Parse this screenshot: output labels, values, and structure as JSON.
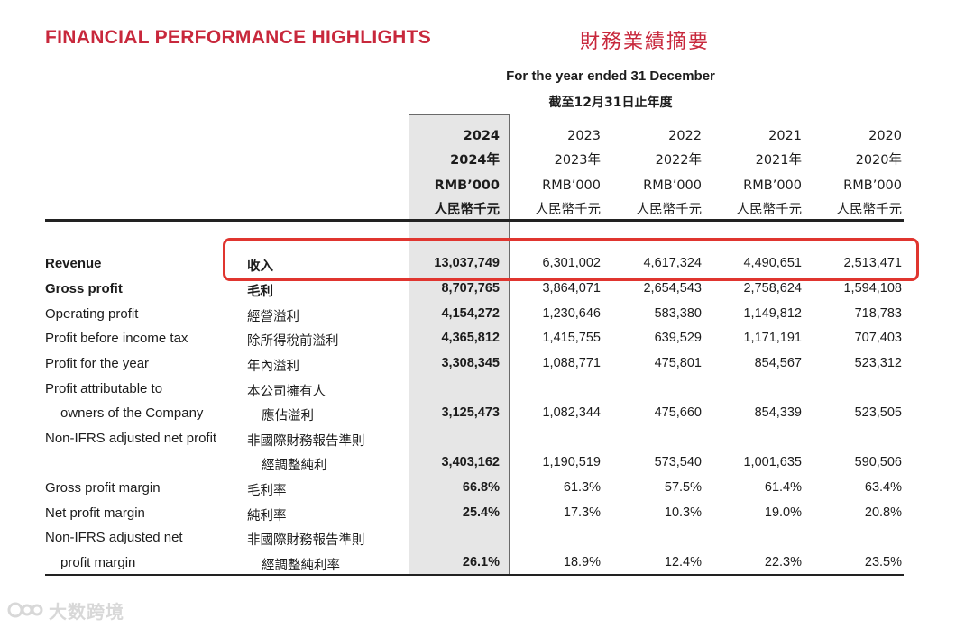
{
  "title": {
    "english": "FINANCIAL PERFORMANCE HIGHLIGHTS",
    "chinese": "財務業績摘要"
  },
  "period": {
    "english": "For the year ended 31 December",
    "chinese": "截至12月31日止年度"
  },
  "columns": [
    {
      "year": "2024",
      "year_zh": "2024年",
      "unit": "RMB’000",
      "unit_zh": "人民幣千元"
    },
    {
      "year": "2023",
      "year_zh": "2023年",
      "unit": "RMB’000",
      "unit_zh": "人民幣千元"
    },
    {
      "year": "2022",
      "year_zh": "2022年",
      "unit": "RMB’000",
      "unit_zh": "人民幣千元"
    },
    {
      "year": "2021",
      "year_zh": "2021年",
      "unit": "RMB’000",
      "unit_zh": "人民幣千元"
    },
    {
      "year": "2020",
      "year_zh": "2020年",
      "unit": "RMB’000",
      "unit_zh": "人民幣千元"
    }
  ],
  "rows": [
    {
      "en": "Revenue",
      "zh": "收入",
      "values": [
        "13,037,749",
        "6,301,002",
        "4,617,324",
        "4,490,651",
        "2,513,471"
      ]
    },
    {
      "en": "Gross profit",
      "zh": "毛利",
      "values": [
        "8,707,765",
        "3,864,071",
        "2,654,543",
        "2,758,624",
        "1,594,108"
      ]
    },
    {
      "en": "Operating profit",
      "zh": "經營溢利",
      "values": [
        "4,154,272",
        "1,230,646",
        "583,380",
        "1,149,812",
        "718,783"
      ]
    },
    {
      "en": "Profit before income tax",
      "zh": "除所得稅前溢利",
      "values": [
        "4,365,812",
        "1,415,755",
        "639,529",
        "1,171,191",
        "707,403"
      ]
    },
    {
      "en": "Profit for the year",
      "zh": "年內溢利",
      "values": [
        "3,308,345",
        "1,088,771",
        "475,801",
        "854,567",
        "523,312"
      ]
    },
    {
      "en": "Profit attributable to",
      "en2": "owners of the Company",
      "zh": "本公司擁有人",
      "zh2": "應佔溢利",
      "values": [
        "3,125,473",
        "1,082,344",
        "475,660",
        "854,339",
        "523,505"
      ]
    },
    {
      "en": "Non-IFRS adjusted net profit",
      "zh": "非國際財務報告準則",
      "zh2": "經調整純利",
      "values": [
        "3,403,162",
        "1,190,519",
        "573,540",
        "1,001,635",
        "590,506"
      ]
    },
    {
      "en": "Gross profit margin",
      "zh": "毛利率",
      "values": [
        "66.8%",
        "61.3%",
        "57.5%",
        "61.4%",
        "63.4%"
      ]
    },
    {
      "en": "Net profit margin",
      "zh": "純利率",
      "values": [
        "25.4%",
        "17.3%",
        "10.3%",
        "19.0%",
        "20.8%"
      ]
    },
    {
      "en": "Non-IFRS adjusted net",
      "en2": "profit margin",
      "zh": "非國際財務報告準則",
      "zh2": "經調整純利率",
      "values": [
        "26.1%",
        "18.9%",
        "12.4%",
        "22.3%",
        "23.5%"
      ]
    }
  ],
  "watermark": "大数跨境",
  "colors": {
    "title": "#c8283c",
    "highlight_border": "#e0352f",
    "current_year_shade": "#e6e6e6"
  }
}
